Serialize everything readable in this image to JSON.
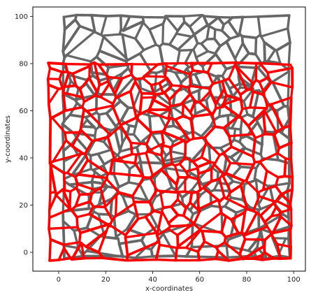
{
  "chart_data": {
    "type": "line",
    "title": "",
    "xlabel": "x-coordinates",
    "ylabel": "y-coordinates",
    "xlim": [
      -11,
      105
    ],
    "ylim": [
      -8,
      104
    ],
    "xticks": [
      0,
      20,
      40,
      60,
      80,
      100
    ],
    "yticks": [
      0,
      20,
      40,
      60,
      80,
      100
    ],
    "grid": false,
    "legend": "none",
    "series": [
      {
        "color": "#333333",
        "opacity": 0.75,
        "style": "dotted-network",
        "seed": 7,
        "cells": 240,
        "x_range": [
          2,
          98
        ],
        "y_range": [
          -2,
          100
        ]
      },
      {
        "color": "#ff0000",
        "opacity": 1.0,
        "style": "dotted-network",
        "seed": 19,
        "cells": 210,
        "x_range": [
          -4,
          99
        ],
        "y_range": [
          -3,
          80
        ]
      }
    ]
  }
}
